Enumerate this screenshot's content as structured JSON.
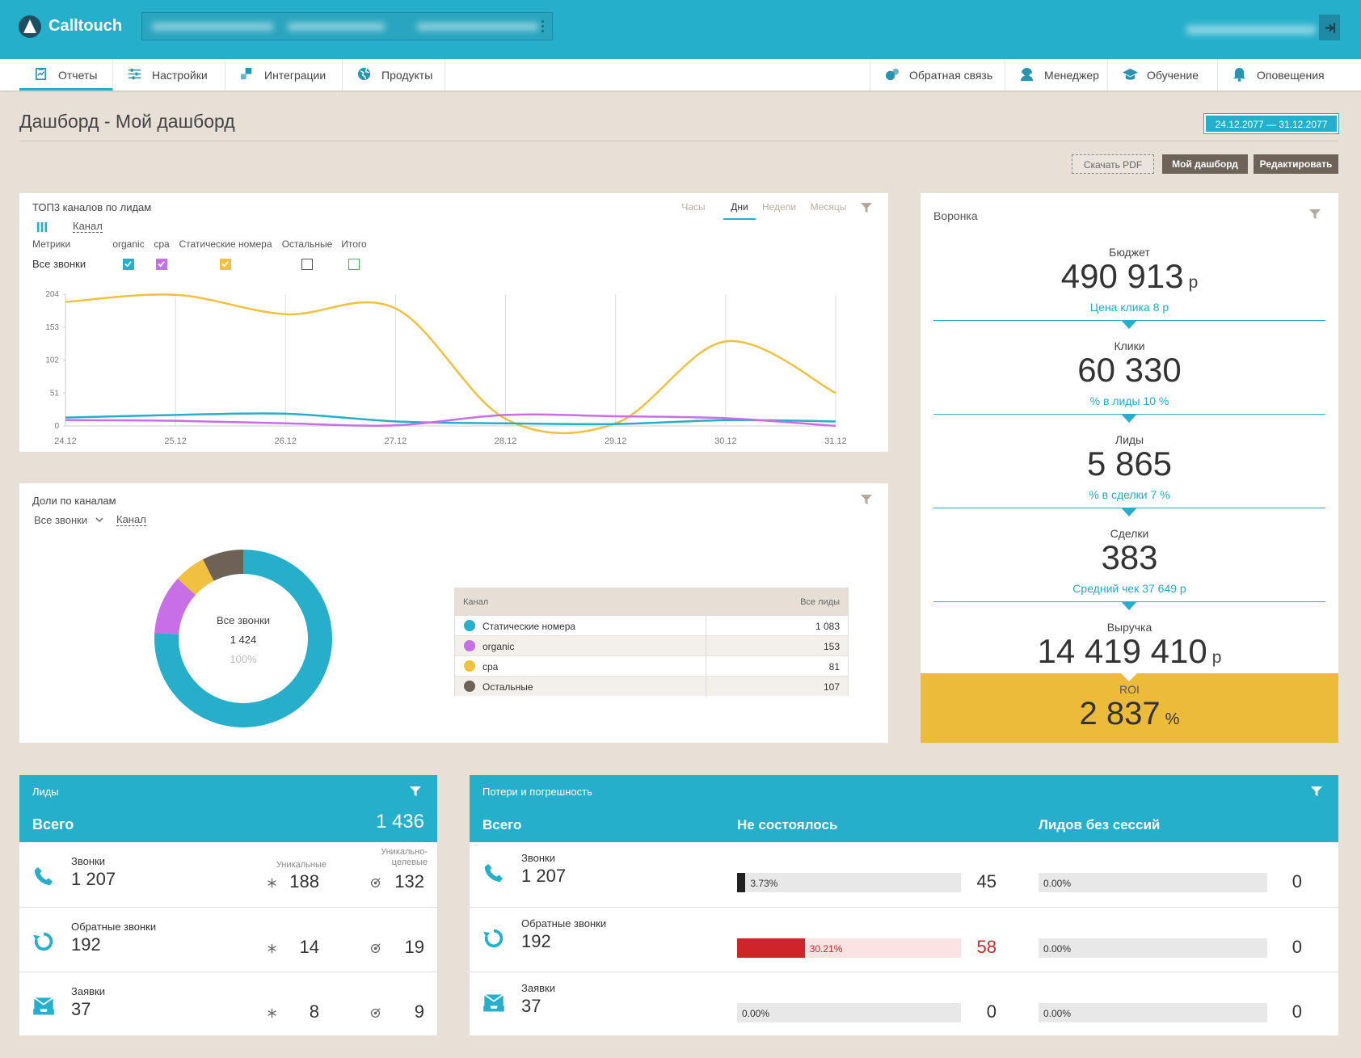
{
  "header": {
    "logo": "Calltouch"
  },
  "nav": {
    "left": [
      "Отчеты",
      "Настройки",
      "Интеграции",
      "Продукты"
    ],
    "right": [
      "Обратная связь",
      "Менеджер",
      "Обучение",
      "Оповещения"
    ],
    "active": 0
  },
  "page": {
    "title": "Дашборд - Мой дашборд",
    "date_range": "24.12.2077 — 31.12.2077",
    "buttons": [
      "Скачать PDF",
      "Мой дашборд",
      "Редактировать"
    ]
  },
  "top3": {
    "title": "ТОП3 каналов по лидам",
    "periods": [
      "Часы",
      "Дни",
      "Недели",
      "Месяцы"
    ],
    "active_period": 1,
    "group": "Канал",
    "metrics_label": "Метрики",
    "row_label": "Все звонки",
    "columns": [
      {
        "name": "organic",
        "color": "#26aecb",
        "checked": true
      },
      {
        "name": "cpa",
        "color": "#c86ee6",
        "checked": true
      },
      {
        "name": "Статические номера",
        "color": "#f0c040",
        "checked": true
      },
      {
        "name": "Остальные",
        "color": "#555555",
        "checked": false
      },
      {
        "name": "Итого",
        "color": "#4caf50",
        "checked": false
      }
    ],
    "chart": {
      "type": "line",
      "x": [
        "24.12",
        "25.12",
        "26.12",
        "27.12",
        "28.12",
        "29.12",
        "30.12",
        "31.12"
      ],
      "series": [
        {
          "color": "#f0c040",
          "values": [
            192,
            203,
            173,
            182,
            11,
            4,
            131,
            51
          ]
        },
        {
          "color": "#26aecb",
          "values": [
            13,
            17,
            19,
            7,
            4,
            3,
            9,
            7
          ]
        },
        {
          "color": "#c86ee6",
          "values": [
            9,
            8,
            4,
            1,
            17,
            15,
            12,
            0
          ]
        }
      ],
      "ylim": [
        0,
        204
      ],
      "yticks": [
        0,
        51,
        102,
        153,
        204
      ],
      "grid": "x"
    }
  },
  "shares": {
    "title": "Доли по каналам",
    "selector": "Все звонки",
    "group": "Канал",
    "center": {
      "label": "Все звонки",
      "total": "1 424",
      "percent": "100%"
    },
    "table_headers": [
      "Канал",
      "Все лиды"
    ],
    "chart": {
      "type": "donut",
      "categories": [
        "Статические номера",
        "organic",
        "cpa",
        "Остальные"
      ],
      "colors": [
        "#26aecb",
        "#c86ee6",
        "#f0c040",
        "#6e6257"
      ],
      "values": [
        1083,
        153,
        81,
        107
      ],
      "value_labels": [
        "1 083",
        "153",
        "81",
        "107"
      ]
    }
  },
  "funnel": {
    "title": "Воронка",
    "stages": [
      {
        "label": "Бюджет",
        "value": "490 913",
        "unit": "р",
        "note": "Цена клика 8 р"
      },
      {
        "label": "Клики",
        "value": "60 330",
        "note": "% в лиды 10 %"
      },
      {
        "label": "Лиды",
        "value": "5 865",
        "note": "% в сделки 7 %"
      },
      {
        "label": "Сделки",
        "value": "383",
        "note": "Средний чек 37 649 р"
      },
      {
        "label": "Выручка",
        "value": "14 419 410",
        "unit": "р"
      }
    ],
    "roi": {
      "label": "ROI",
      "value": "2 837",
      "unit": "%"
    }
  },
  "leads": {
    "title": "Лиды",
    "total_label": "Всего",
    "total": "1 436",
    "columns": [
      "Уникальные",
      "Уникально-целевые"
    ],
    "rows": [
      {
        "name": "Звонки",
        "value": "1 207",
        "unique": "188",
        "target": "132"
      },
      {
        "name": "Обратные звонки",
        "value": "192",
        "unique": "14",
        "target": "19"
      },
      {
        "name": "Заявки",
        "value": "37",
        "unique": "8",
        "target": "9"
      }
    ]
  },
  "losses": {
    "title": "Потери и погрешность",
    "headers": [
      "Всего",
      "Не состоялось",
      "Лидов без сессий"
    ],
    "rows": [
      {
        "name": "Звонки",
        "value": "1 207",
        "failed": {
          "percent": 3.73,
          "label": "3.73%",
          "count": "45",
          "color": "#222222",
          "highlight": false
        },
        "no_session": {
          "percent": 0,
          "label": "0.00%",
          "count": "0"
        }
      },
      {
        "name": "Обратные звонки",
        "value": "192",
        "failed": {
          "percent": 30.21,
          "label": "30.21%",
          "count": "58",
          "color": "#d0242b",
          "highlight": true
        },
        "no_session": {
          "percent": 0,
          "label": "0.00%",
          "count": "0"
        }
      },
      {
        "name": "Заявки",
        "value": "37",
        "failed": {
          "percent": 0,
          "label": "0.00%",
          "count": "0",
          "color": "#222222",
          "highlight": false
        },
        "no_session": {
          "percent": 0,
          "label": "0.00%",
          "count": "0"
        }
      }
    ]
  }
}
